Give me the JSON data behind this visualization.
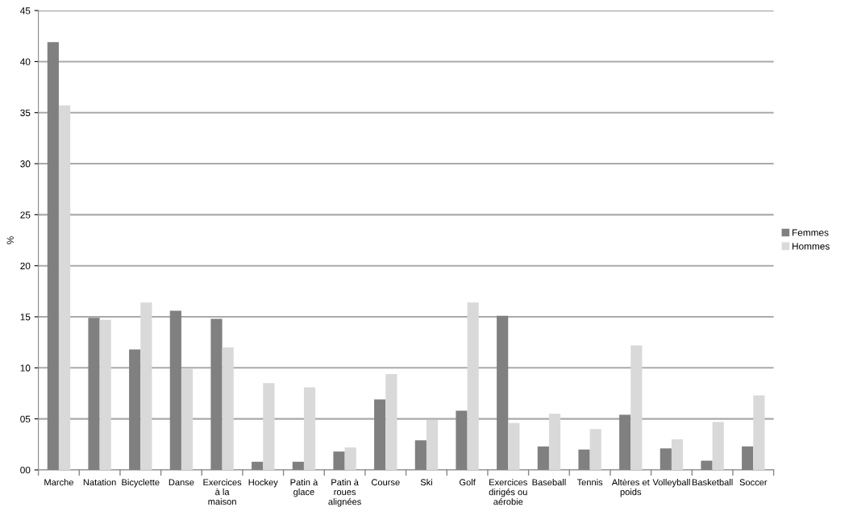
{
  "chart_data": {
    "type": "bar",
    "ylabel": "%",
    "categories": [
      "Marche",
      "Natation",
      "Bicyclette",
      "Danse",
      "Exercices\nà la\nmaison",
      "Hockey",
      "Patin à\nglace",
      "Patin à\nroues\nalignées",
      "Course",
      "Ski",
      "Golf",
      "Exercices\ndirigés ou\naérobie",
      "Baseball",
      "Tennis",
      "Altères et\npoids",
      "Volleyball",
      "Basketball",
      "Soccer"
    ],
    "series": [
      {
        "name": "Femmes",
        "color": "#808080",
        "values": [
          41.9,
          14.9,
          11.8,
          15.6,
          14.8,
          0.8,
          0.8,
          1.8,
          6.9,
          2.9,
          5.8,
          15.1,
          2.3,
          2.0,
          5.4,
          2.1,
          0.9,
          2.3
        ]
      },
      {
        "name": "Hommes",
        "color": "#d9d9d9",
        "values": [
          35.7,
          14.7,
          16.4,
          9.9,
          12.0,
          8.5,
          8.1,
          2.2,
          9.4,
          4.9,
          16.4,
          4.6,
          5.5,
          4.0,
          12.2,
          3.0,
          4.7,
          7.3
        ]
      }
    ],
    "ylim": [
      0,
      45
    ],
    "yticks": [
      {
        "value": 0,
        "label": "00"
      },
      {
        "value": 5,
        "label": "05"
      },
      10,
      15,
      20,
      25,
      30,
      35,
      40,
      45
    ],
    "grid": "y",
    "legend": "right"
  }
}
